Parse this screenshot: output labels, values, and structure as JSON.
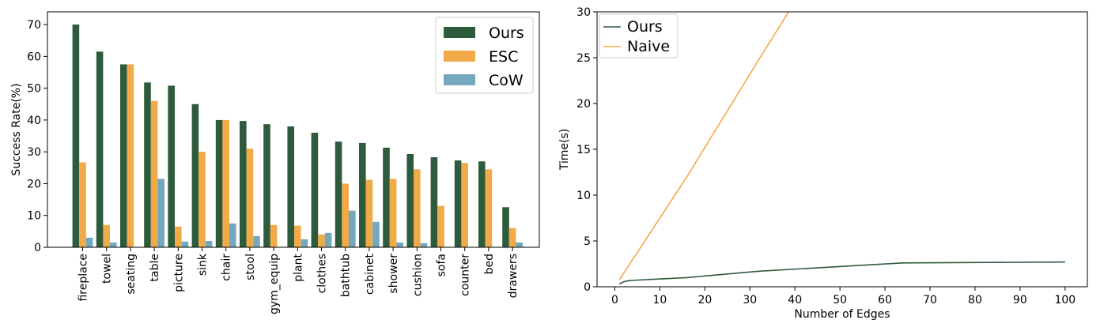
{
  "chart_data": [
    {
      "type": "bar",
      "xlabel": "",
      "ylabel": "Success Rate(%)",
      "ylim": [
        0,
        74
      ],
      "yticks": [
        0,
        10,
        20,
        30,
        40,
        50,
        60,
        70
      ],
      "legend": "top-right",
      "grid": false,
      "categories": [
        "fireplace",
        "towel",
        "seating",
        "table",
        "picture",
        "sink",
        "chair",
        "stool",
        "gym_equip",
        "plant",
        "clothes",
        "bathtub",
        "cabinet",
        "shower",
        "cushion",
        "sofa",
        "counter",
        "bed",
        "drawers"
      ],
      "series": [
        {
          "name": "Ours",
          "color": "#2e5b3c",
          "values": [
            70,
            61.5,
            57.5,
            51.8,
            50.8,
            45,
            40,
            39.7,
            38.7,
            38,
            36,
            33.2,
            32.8,
            31.3,
            29.3,
            28.3,
            27.3,
            27,
            12.6
          ]
        },
        {
          "name": "ESC",
          "color": "#f0aa48",
          "values": [
            26.7,
            7,
            57.5,
            46,
            6.5,
            30,
            40,
            31,
            7,
            6.8,
            4,
            20,
            21.2,
            21.5,
            24.5,
            13,
            26.5,
            24.5,
            6
          ]
        },
        {
          "name": "CoW",
          "color": "#74a9bd",
          "values": [
            3,
            1.5,
            0,
            21.5,
            1.8,
            2,
            7.5,
            3.5,
            0,
            2.5,
            4.5,
            11.5,
            8,
            1.5,
            1.3,
            0,
            0,
            0,
            1.5
          ]
        }
      ]
    },
    {
      "type": "line",
      "xlabel": "Number of Edges",
      "ylabel": "Time(s)",
      "xlim": [
        -3.95,
        104.95
      ],
      "ylim": [
        0,
        30
      ],
      "xticks": [
        0,
        10,
        20,
        30,
        40,
        50,
        60,
        70,
        80,
        90,
        100
      ],
      "yticks": [
        0,
        5,
        10,
        15,
        20,
        25,
        30
      ],
      "legend": "top-left",
      "grid": false,
      "series": [
        {
          "name": "Ours",
          "color": "#2e5b3c",
          "x": [
            1,
            2,
            3,
            4,
            8,
            16,
            32,
            64,
            100
          ],
          "y": [
            0.3,
            0.55,
            0.65,
            0.7,
            0.8,
            1.0,
            1.7,
            2.6,
            2.7
          ]
        },
        {
          "name": "Naive",
          "color": "#f0aa48",
          "x": [
            1,
            2,
            4,
            8,
            16,
            32,
            64
          ],
          "y": [
            0.75,
            1.5,
            3,
            6,
            12,
            24.8,
            50
          ]
        }
      ]
    }
  ]
}
